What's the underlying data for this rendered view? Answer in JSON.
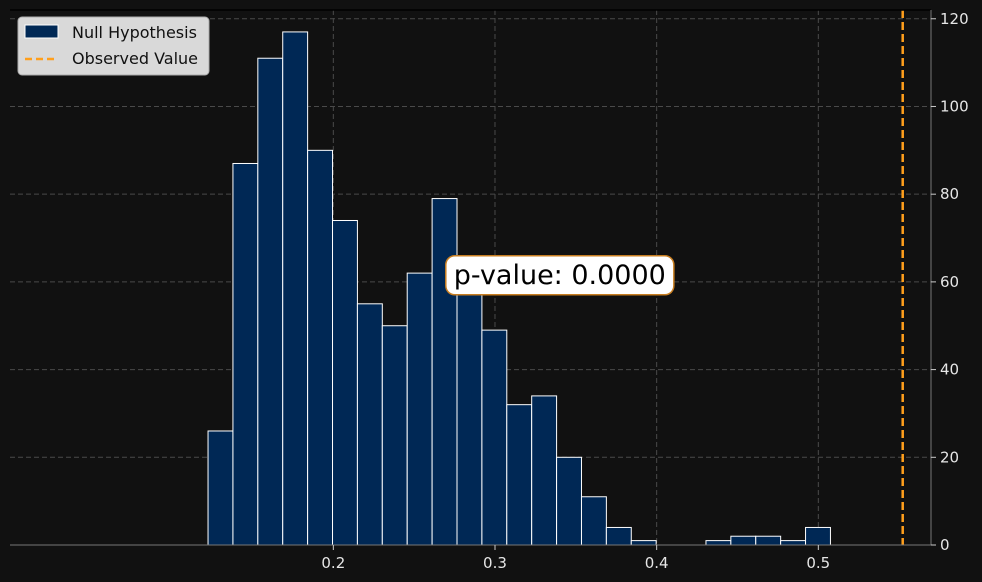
{
  "chart_data": {
    "type": "bar",
    "subtype": "histogram",
    "title": "",
    "xlabel": "",
    "ylabel": "",
    "xlim": [
      0.0,
      0.5697
    ],
    "ylim": [
      0,
      122
    ],
    "xticks": [
      0.2,
      0.3,
      0.4,
      0.5
    ],
    "xtick_labels": [
      "0.2",
      "0.3",
      "0.4",
      "0.5"
    ],
    "yticks": [
      0,
      20,
      40,
      60,
      80,
      100,
      120
    ],
    "ytick_labels": [
      "0",
      "20",
      "40",
      "60",
      "80",
      "100",
      "120"
    ],
    "y_axis_side": "right",
    "grid": true,
    "bin_edges": [
      0.1225,
      0.1379,
      0.1533,
      0.1687,
      0.1841,
      0.1995,
      0.2149,
      0.2303,
      0.2457,
      0.2611,
      0.2765,
      0.2919,
      0.3073,
      0.3227,
      0.3381,
      0.3535,
      0.3689,
      0.3843,
      0.3997,
      0.4151,
      0.4305,
      0.4459,
      0.4613,
      0.4767,
      0.4921,
      0.5075
    ],
    "counts": [
      26,
      87,
      111,
      117,
      90,
      74,
      55,
      50,
      62,
      79,
      59,
      49,
      32,
      34,
      20,
      11,
      4,
      1,
      0,
      0,
      1,
      2,
      2,
      1,
      4
    ],
    "observed_value": 0.5522,
    "series": [
      {
        "name": "Null Hypothesis",
        "color": "#002855",
        "edge_color": "#ffffff"
      },
      {
        "name": "Observed Value",
        "color": "#ff9f1c",
        "style": "dashed"
      }
    ],
    "legend_position": "top-left",
    "annotation": {
      "text": "p-value: 0.0000",
      "x": 0.3401,
      "y": 61.5
    }
  }
}
